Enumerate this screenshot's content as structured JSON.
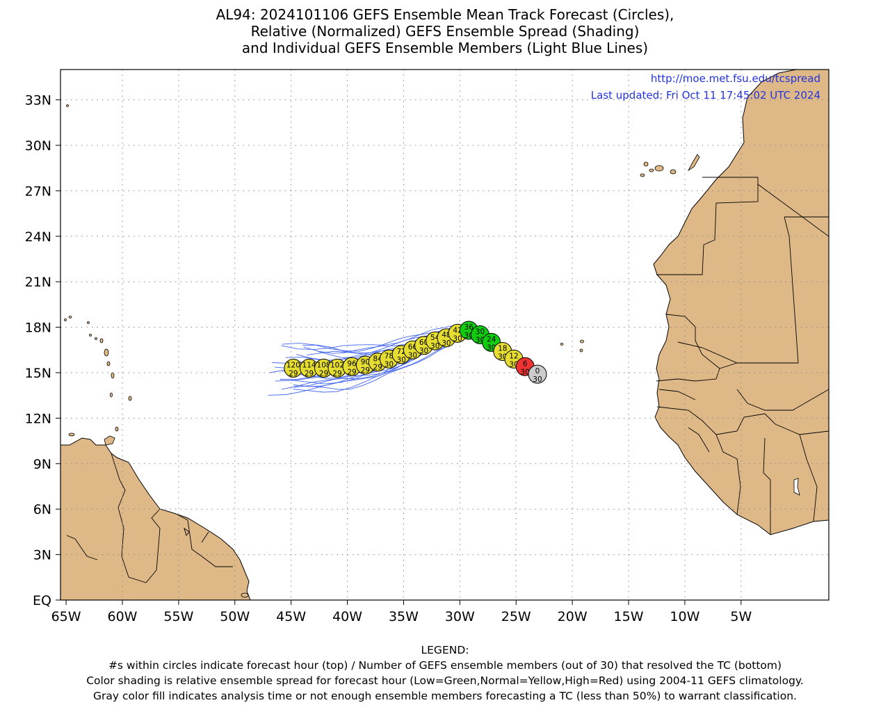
{
  "title": {
    "line1": "AL94: 2024101106 GEFS Ensemble Mean Track Forecast (Circles),",
    "line2": "Relative (Normalized) GEFS Ensemble Spread (Shading)",
    "line3": "and Individual GEFS Ensemble Members (Light Blue Lines)"
  },
  "info": {
    "url": "http://moe.met.fsu.edu/tcspread",
    "updated": "Last updated: Fri Oct 11 17:45:02 UTC 2024"
  },
  "axes": {
    "lat_ticks": [
      "33N",
      "30N",
      "27N",
      "24N",
      "21N",
      "18N",
      "15N",
      "12N",
      "9N",
      "6N",
      "3N",
      "EQ"
    ],
    "lon_ticks": [
      "65W",
      "60W",
      "55W",
      "50W",
      "45W",
      "40W",
      "35W",
      "30W",
      "25W",
      "20W",
      "15W",
      "10W",
      "5W"
    ]
  },
  "colors": {
    "land": "#deb887",
    "track_member": "#4466ee",
    "low_spread": "#11cc11",
    "normal_spread": "#e6dd33",
    "high_spread": "#ee3333",
    "analysis": "#cccccc",
    "info_text": "#2233dd"
  },
  "track": [
    {
      "hour": "0",
      "members": "30",
      "lon": -23.1,
      "lat": 14.9,
      "class": "analysis"
    },
    {
      "hour": "6",
      "members": "30",
      "lon": -24.2,
      "lat": 15.4,
      "class": "high"
    },
    {
      "hour": "12",
      "members": "30",
      "lon": -25.2,
      "lat": 15.9,
      "class": "normal"
    },
    {
      "hour": "18",
      "members": "30",
      "lon": -26.2,
      "lat": 16.4,
      "class": "normal"
    },
    {
      "hour": "24",
      "members": "30",
      "lon": -27.2,
      "lat": 17.0,
      "class": "low"
    },
    {
      "hour": "30",
      "members": "30",
      "lon": -28.2,
      "lat": 17.5,
      "class": "low"
    },
    {
      "hour": "36",
      "members": "30",
      "lon": -29.2,
      "lat": 17.8,
      "class": "low"
    },
    {
      "hour": "42",
      "members": "30",
      "lon": -30.2,
      "lat": 17.6,
      "class": "normal"
    },
    {
      "hour": "48",
      "members": "30",
      "lon": -31.2,
      "lat": 17.3,
      "class": "normal"
    },
    {
      "hour": "54",
      "members": "30",
      "lon": -32.2,
      "lat": 17.1,
      "class": "normal"
    },
    {
      "hour": "60",
      "members": "30",
      "lon": -33.2,
      "lat": 16.8,
      "class": "normal"
    },
    {
      "hour": "66",
      "members": "30",
      "lon": -34.2,
      "lat": 16.5,
      "class": "normal"
    },
    {
      "hour": "72",
      "members": "30",
      "lon": -35.2,
      "lat": 16.2,
      "class": "normal"
    },
    {
      "hour": "78",
      "members": "30",
      "lon": -36.3,
      "lat": 15.9,
      "class": "normal"
    },
    {
      "hour": "84",
      "members": "29",
      "lon": -37.3,
      "lat": 15.7,
      "class": "normal"
    },
    {
      "hour": "90",
      "members": "29",
      "lon": -38.4,
      "lat": 15.5,
      "class": "normal"
    },
    {
      "hour": "96",
      "members": "29",
      "lon": -39.6,
      "lat": 15.4,
      "class": "normal"
    },
    {
      "hour": "102",
      "members": "29",
      "lon": -40.9,
      "lat": 15.3,
      "class": "normal"
    },
    {
      "hour": "108",
      "members": "29",
      "lon": -42.1,
      "lat": 15.3,
      "class": "normal"
    },
    {
      "hour": "114",
      "members": "29",
      "lon": -43.4,
      "lat": 15.3,
      "class": "normal"
    },
    {
      "hour": "120",
      "members": "29",
      "lon": -44.8,
      "lat": 15.3,
      "class": "normal"
    }
  ],
  "legend": {
    "heading": "LEGEND:",
    "line1": "#s within circles indicate forecast hour (top) / Number of GEFS ensemble members (out of 30) that resolved the TC (bottom)",
    "line2": "Color shading is relative ensemble spread for forecast hour (Low=Green,Normal=Yellow,High=Red) using 2004-11 GEFS climatology.",
    "line3": "Gray color fill indicates analysis time or not enough ensemble members forecasting a TC (less than 50%) to warrant classification."
  }
}
